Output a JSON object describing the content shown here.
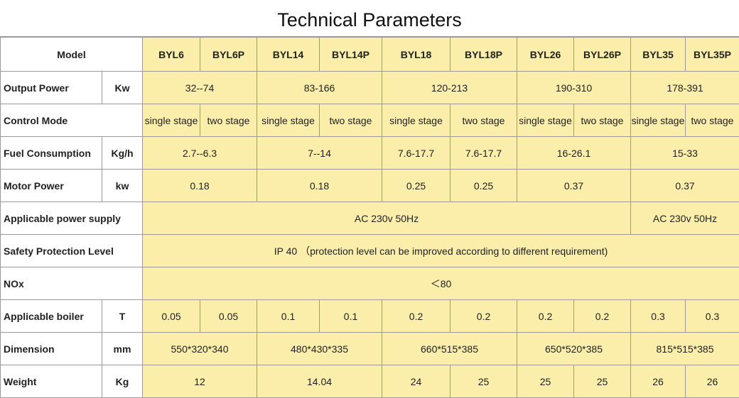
{
  "title": "Technical Parameters",
  "table": {
    "header": {
      "label": "Model",
      "models": [
        "BYL6",
        "BYL6P",
        "BYL14",
        "BYL14P",
        "BYL18",
        "BYL18P",
        "BYL26",
        "BYL26P",
        "BYL35",
        "BYL35P"
      ]
    },
    "rows": [
      {
        "label": "Output Power",
        "unit": "Kw",
        "cells": [
          "32--74",
          "83-166",
          "120-213",
          "190-310",
          "178-391"
        ]
      },
      {
        "label": "Control Mode",
        "cells": [
          "single stage",
          "two stage",
          "single stage",
          "two stage",
          "single stage",
          "two stage",
          "single stage",
          "two stage",
          "single stage",
          "two stage"
        ]
      },
      {
        "label": "Fuel Consumption",
        "unit": "Kg/h",
        "cells": [
          "2.7--6.3",
          "7--14",
          "7.6-17.7",
          "7.6-17.7",
          "16-26.1",
          "15-33"
        ]
      },
      {
        "label": "Motor Power",
        "unit": "kw",
        "cells": [
          "0.18",
          "0.18",
          "0.25",
          "0.25",
          "0.37",
          "0.37"
        ]
      },
      {
        "label": "Applicable power supply",
        "cells": [
          "AC 230v 50Hz",
          "AC 230v 50Hz"
        ]
      },
      {
        "label": "Safety Protection Level",
        "cells": [
          "IP 40 （protection level can be improved according to different requirement)"
        ]
      },
      {
        "label": "NOx",
        "cells": [
          "＜80"
        ]
      },
      {
        "label": "Applicable boiler",
        "unit": "T",
        "cells": [
          "0.05",
          "0.05",
          "0.1",
          "0.1",
          "0.2",
          "0.2",
          "0.2",
          "0.2",
          "0.3",
          "0.3"
        ]
      },
      {
        "label": "Dimension",
        "unit": "mm",
        "cells": [
          "550*320*340",
          "480*430*335",
          "660*515*385",
          "650*520*385",
          "815*515*385"
        ]
      },
      {
        "label": "Weight",
        "unit": "Kg",
        "cells": [
          "12",
          "14.04",
          "24",
          "25",
          "25",
          "25",
          "26",
          "26"
        ]
      }
    ]
  }
}
